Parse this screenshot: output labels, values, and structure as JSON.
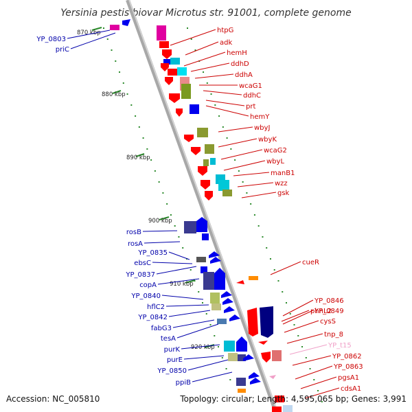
{
  "header": {
    "title": "Yersinia pestis biovar Microtus str. 91001, complete genome"
  },
  "footer": {
    "accession": "Accession: NC_005810",
    "topology": "Topology: circular; Length: 4,595,065 bp; Genes: 3,991"
  },
  "colors": {
    "red_label": "#cc0000",
    "blue_label": "#0000aa",
    "pink_label": "#f0a0c8"
  },
  "kbp_ticks": [
    "870 kbp",
    "880 kbp",
    "890 kbp",
    "900 kbp",
    "910 kbp",
    "920 kbp"
  ],
  "right_genes": [
    "htpG",
    "adk",
    "hemH",
    "ddhD",
    "ddhA",
    "wcaG1",
    "ddhC",
    "prt",
    "hemY",
    "wbyJ",
    "wbyK",
    "wcaG2",
    "wbyL",
    "manB1",
    "wzz",
    "gsk",
    "cueR",
    "phnL2",
    "YP_0846",
    "YP_0849",
    "cysS",
    "tnp_8",
    "YP_t15",
    "YP_0862",
    "YP_0863",
    "pgsA1",
    "cdsA1"
  ],
  "left_genes": [
    "YP_0803",
    "priC",
    "rosB",
    "rosA",
    "YP_0835",
    "ebsC",
    "YP_0837",
    "copA",
    "YP_0840",
    "hflC2",
    "YP_0842",
    "fabG3",
    "tesA",
    "purK",
    "purE",
    "YP_0850",
    "ppiB"
  ]
}
